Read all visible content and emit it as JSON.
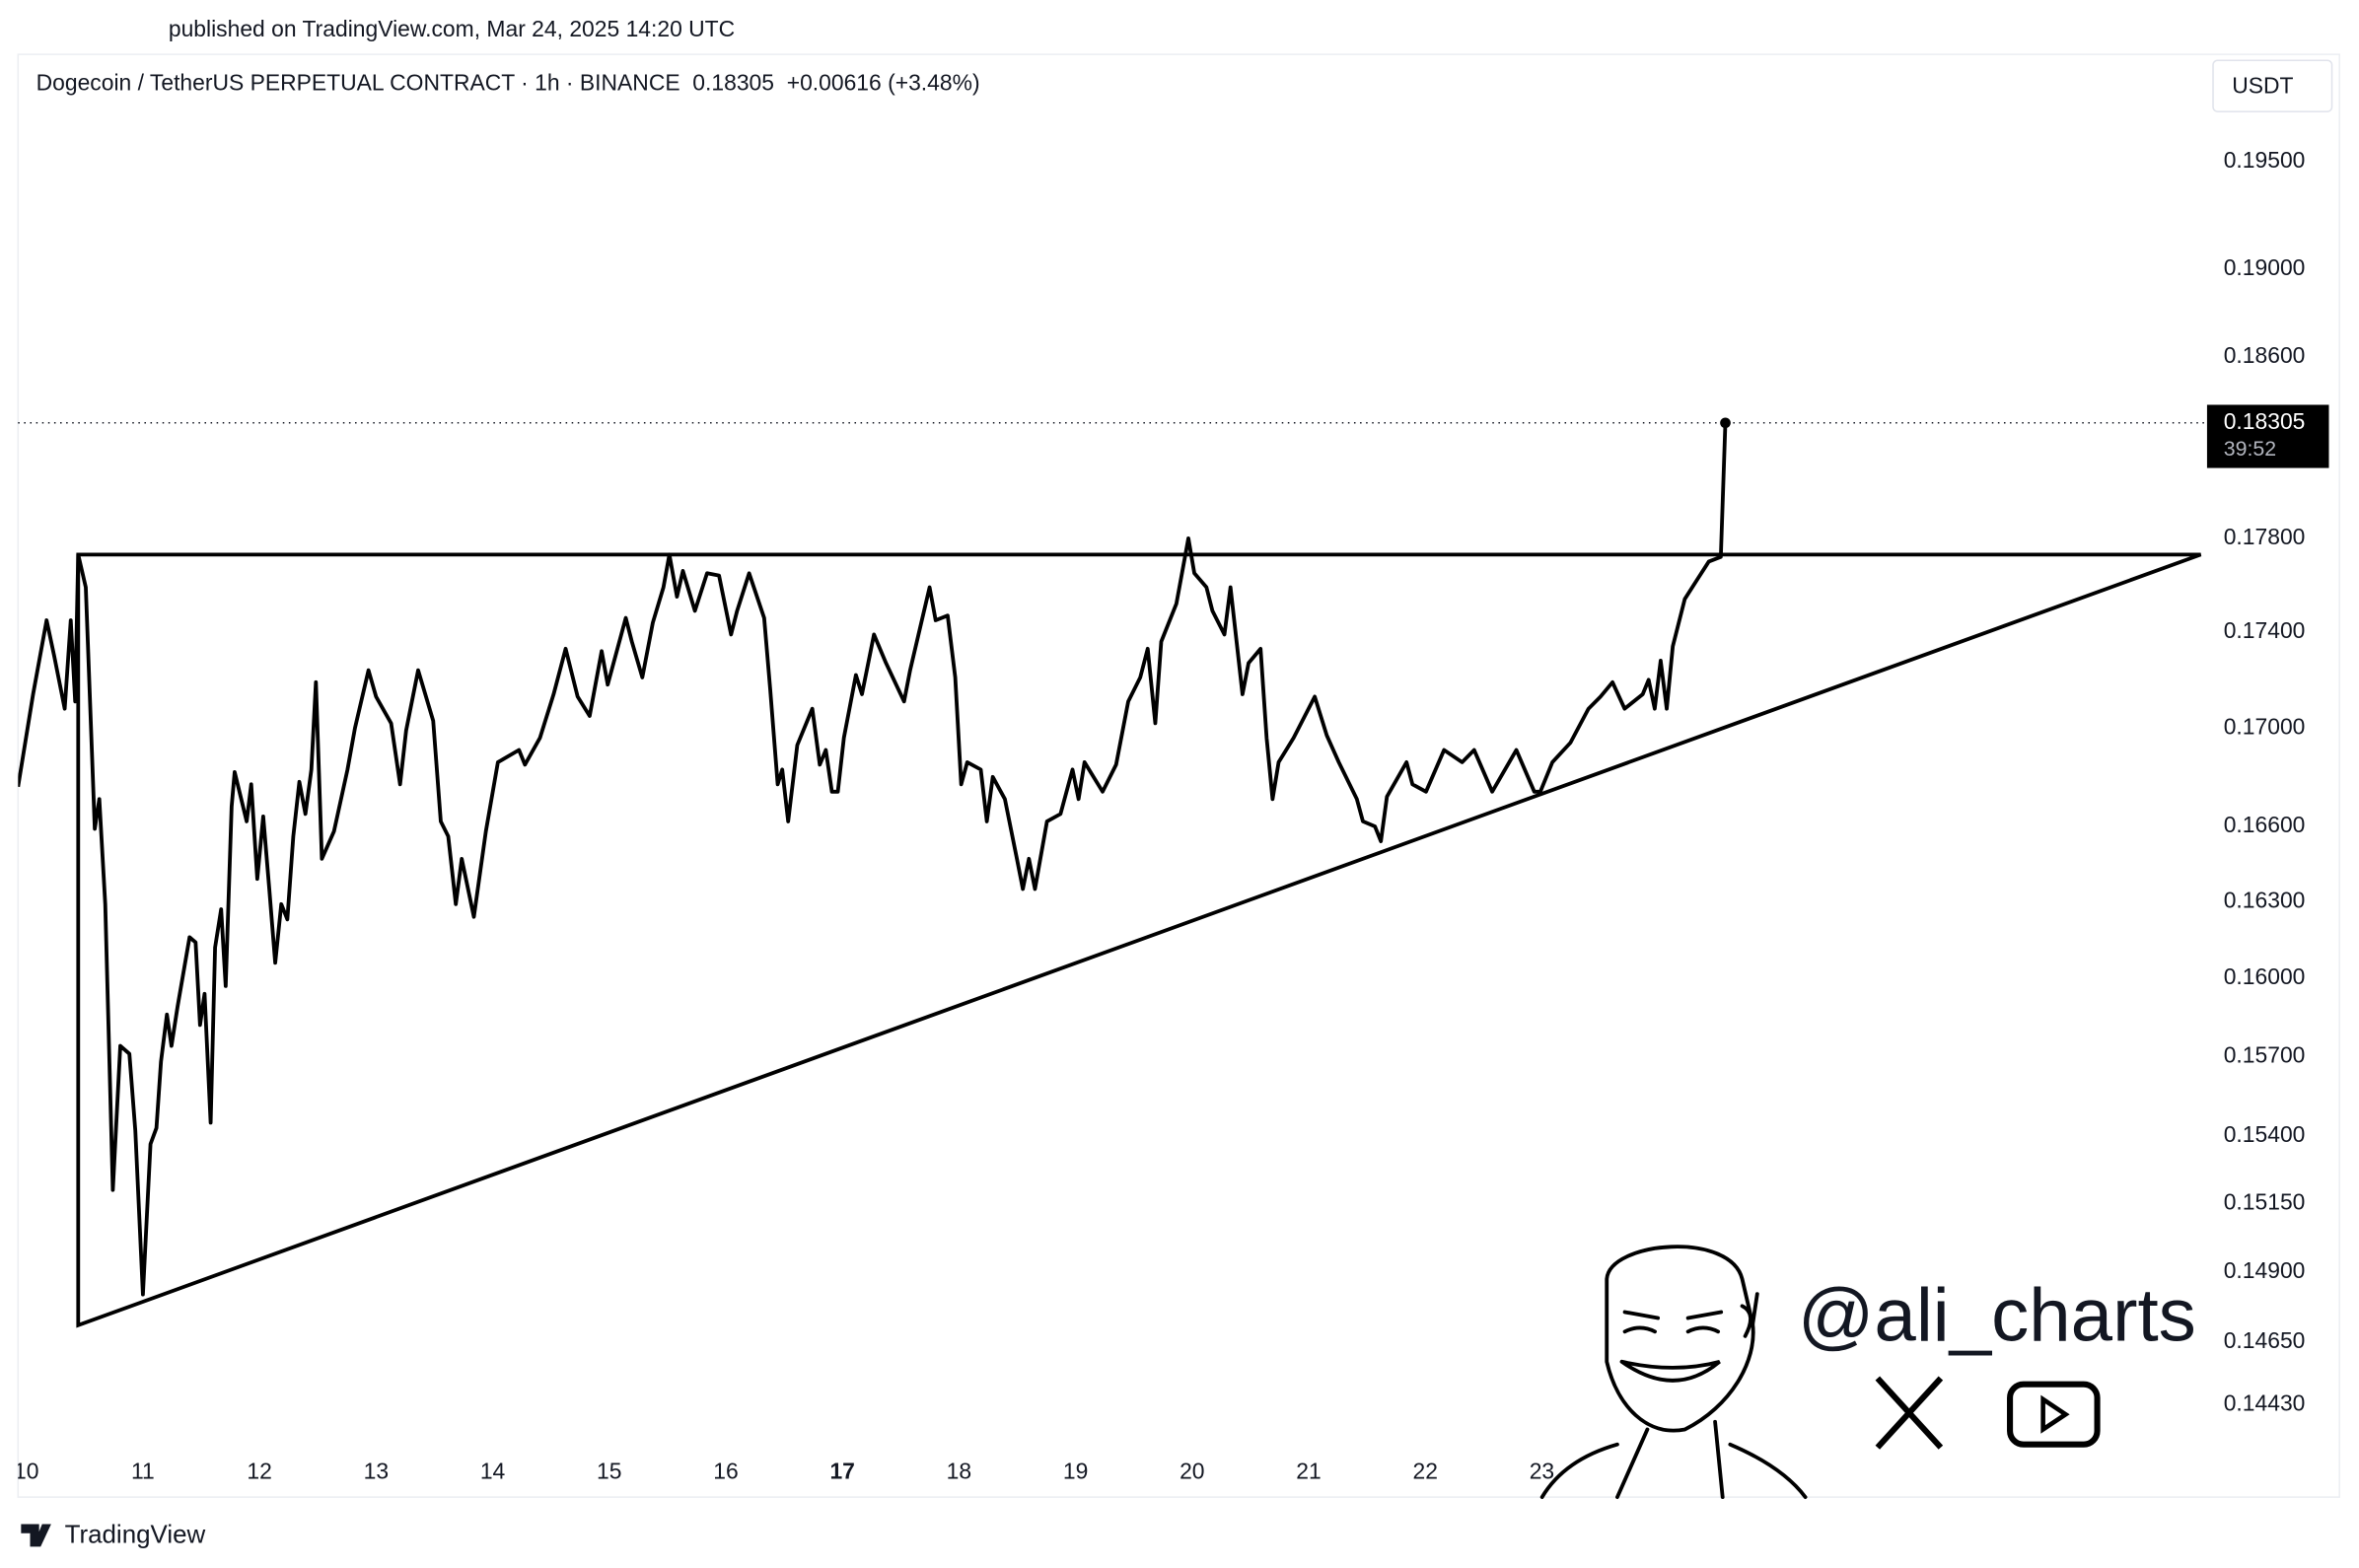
{
  "published_on": "published on TradingView.com, Mar 24, 2025 14:20 UTC",
  "footer": "TradingView",
  "watermark": "@ali_charts",
  "chart_data": {
    "type": "line",
    "title": "Dogecoin / TetherUS PERPETUAL CONTRACT · 1h · BINANCE  0.18305  +0.00616 (+3.48%)",
    "currency": "USDT",
    "ylog": true,
    "grid": false,
    "xlim": [
      9.929,
      28.68
    ],
    "ylim": [
      0.1411,
      0.2
    ],
    "xticks": [
      10,
      11,
      12,
      13,
      14,
      15,
      16,
      17,
      18,
      19,
      20,
      21,
      22,
      23
    ],
    "xtick_bold": 17,
    "yticks": [
      {
        "value": 0.195,
        "label": "0.19500"
      },
      {
        "value": 0.19,
        "label": "0.19000"
      },
      {
        "value": 0.186,
        "label": "0.18600"
      },
      {
        "value": 0.178,
        "label": "0.17800"
      },
      {
        "value": 0.174,
        "label": "0.17400"
      },
      {
        "value": 0.17,
        "label": "0.17000"
      },
      {
        "value": 0.166,
        "label": "0.16600"
      },
      {
        "value": 0.163,
        "label": "0.16300"
      },
      {
        "value": 0.16,
        "label": "0.16000"
      },
      {
        "value": 0.157,
        "label": "0.15700"
      },
      {
        "value": 0.154,
        "label": "0.15400"
      },
      {
        "value": 0.1515,
        "label": "0.15150"
      },
      {
        "value": 0.149,
        "label": "0.14900"
      },
      {
        "value": 0.1465,
        "label": "0.14650"
      },
      {
        "value": 0.1443,
        "label": "0.14430"
      }
    ],
    "last_price": {
      "value": 0.18305,
      "label": "0.18305"
    },
    "countdown": "39:52",
    "triangle": {
      "x": [
        10.445,
        10.445,
        28.652
      ],
      "y": [
        0.1773,
        0.1471,
        0.1773
      ]
    },
    "series": [
      {
        "color": "#000000",
        "x": [
          9.929,
          10.058,
          10.174,
          10.239,
          10.329,
          10.381,
          10.419,
          10.445,
          10.51,
          10.587,
          10.626,
          10.677,
          10.742,
          10.806,
          10.884,
          10.935,
          11.0,
          11.065,
          11.116,
          11.155,
          11.206,
          11.245,
          11.297,
          11.4,
          11.452,
          11.49,
          11.529,
          11.581,
          11.619,
          11.671,
          11.71,
          11.761,
          11.787,
          11.89,
          11.929,
          11.981,
          12.032,
          12.084,
          12.135,
          12.187,
          12.239,
          12.29,
          12.342,
          12.394,
          12.445,
          12.484,
          12.535,
          12.639,
          12.755,
          12.819,
          12.935,
          13.0,
          13.129,
          13.206,
          13.258,
          13.361,
          13.49,
          13.555,
          13.619,
          13.684,
          13.735,
          13.839,
          13.942,
          14.045,
          14.226,
          14.277,
          14.406,
          14.523,
          14.626,
          14.729,
          14.832,
          14.935,
          14.987,
          15.142,
          15.194,
          15.284,
          15.374,
          15.465,
          15.516,
          15.581,
          15.632,
          15.735,
          15.839,
          15.942,
          16.045,
          16.097,
          16.2,
          16.329,
          16.381,
          16.445,
          16.484,
          16.535,
          16.613,
          16.742,
          16.806,
          16.858,
          16.91,
          16.961,
          17.013,
          17.116,
          17.168,
          17.271,
          17.374,
          17.529,
          17.581,
          17.748,
          17.8,
          17.903,
          17.968,
          18.019,
          18.071,
          18.187,
          18.239,
          18.29,
          18.394,
          18.497,
          18.548,
          18.6,
          18.652,
          18.755,
          18.871,
          18.974,
          19.026,
          19.077,
          19.232,
          19.348,
          19.452,
          19.555,
          19.619,
          19.684,
          19.735,
          19.865,
          19.968,
          20.019,
          20.123,
          20.174,
          20.277,
          20.329,
          20.432,
          20.484,
          20.587,
          20.639,
          20.69,
          20.742,
          20.871,
          21.052,
          21.155,
          21.258,
          21.413,
          21.465,
          21.568,
          21.619,
          21.671,
          21.839,
          21.89,
          22.006,
          22.161,
          22.316,
          22.419,
          22.574,
          22.781,
          22.935,
          22.987,
          23.09,
          23.245,
          23.4,
          23.503,
          23.606,
          23.71,
          23.865,
          23.916,
          23.968,
          24.019,
          24.071,
          24.123,
          24.226,
          24.329,
          24.432,
          24.535,
          24.574
        ],
        "values": [
          0.1676,
          0.1714,
          0.1745,
          0.173,
          0.1708,
          0.1745,
          0.1711,
          0.1773,
          0.1759,
          0.1659,
          0.1671,
          0.1629,
          0.152,
          0.1574,
          0.1571,
          0.1542,
          0.1482,
          0.1537,
          0.1543,
          0.1568,
          0.1586,
          0.1574,
          0.1589,
          0.1616,
          0.1614,
          0.1582,
          0.1594,
          0.1545,
          0.1612,
          0.1627,
          0.1597,
          0.1668,
          0.1682,
          0.1662,
          0.1677,
          0.1639,
          0.1664,
          0.1635,
          0.1606,
          0.1629,
          0.1623,
          0.1656,
          0.1678,
          0.1665,
          0.1683,
          0.1719,
          0.1647,
          0.1658,
          0.1683,
          0.17,
          0.1724,
          0.1713,
          0.1702,
          0.1677,
          0.1699,
          0.1724,
          0.1703,
          0.1662,
          0.1656,
          0.1629,
          0.1647,
          0.1624,
          0.1658,
          0.1686,
          0.1691,
          0.1685,
          0.1696,
          0.1714,
          0.1733,
          0.1713,
          0.1705,
          0.1732,
          0.1718,
          0.1746,
          0.1736,
          0.1721,
          0.1744,
          0.1759,
          0.1773,
          0.1755,
          0.1766,
          0.1749,
          0.1765,
          0.1764,
          0.1739,
          0.1749,
          0.1765,
          0.1746,
          0.1716,
          0.1677,
          0.1683,
          0.1662,
          0.1693,
          0.1708,
          0.1685,
          0.1691,
          0.1674,
          0.1674,
          0.1696,
          0.1722,
          0.1714,
          0.1739,
          0.1727,
          0.1711,
          0.1724,
          0.1759,
          0.1745,
          0.1747,
          0.1721,
          0.1677,
          0.1686,
          0.1683,
          0.1662,
          0.168,
          0.1671,
          0.1647,
          0.1635,
          0.1647,
          0.1635,
          0.1662,
          0.1665,
          0.1683,
          0.1671,
          0.1686,
          0.1674,
          0.1685,
          0.1711,
          0.1721,
          0.1733,
          0.1702,
          0.1736,
          0.1752,
          0.178,
          0.1765,
          0.1759,
          0.1749,
          0.1739,
          0.1759,
          0.1714,
          0.1727,
          0.1733,
          0.1696,
          0.1671,
          0.1686,
          0.1696,
          0.1713,
          0.1697,
          0.1686,
          0.1671,
          0.1662,
          0.166,
          0.1654,
          0.1672,
          0.1686,
          0.1677,
          0.1674,
          0.1691,
          0.1686,
          0.1691,
          0.1674,
          0.1691,
          0.1674,
          0.1674,
          0.1686,
          0.1694,
          0.1708,
          0.1713,
          0.1719,
          0.1708,
          0.1714,
          0.172,
          0.1708,
          0.1728,
          0.1708,
          0.1734,
          0.1754,
          0.1762,
          0.177,
          0.1772,
          0.18305
        ]
      }
    ]
  }
}
